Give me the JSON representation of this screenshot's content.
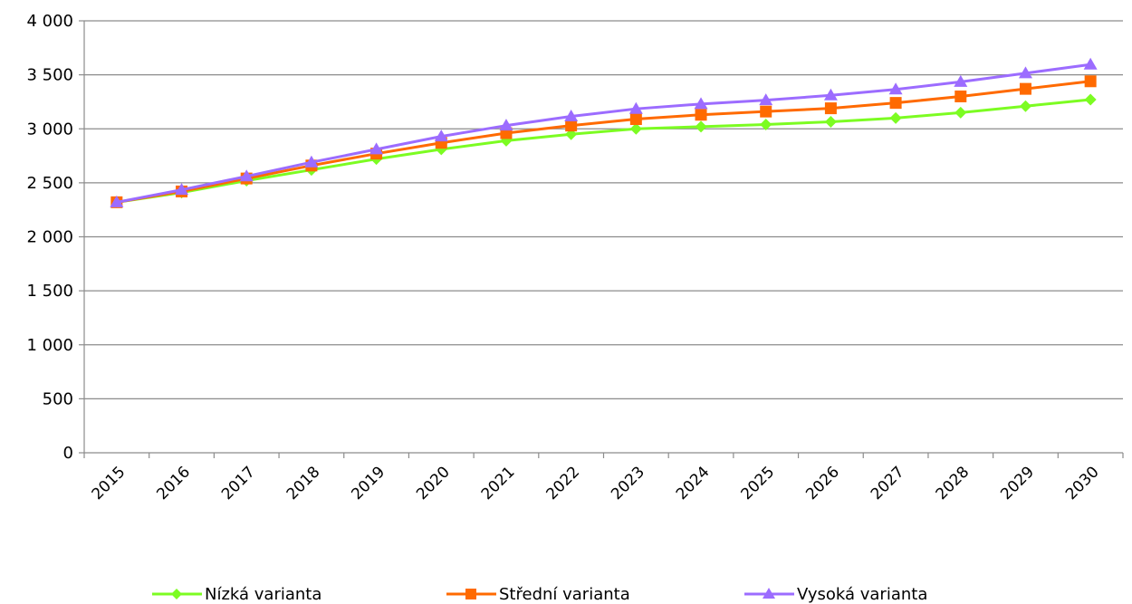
{
  "chart_data": {
    "type": "line",
    "title": "",
    "xlabel": "",
    "ylabel": "",
    "x": [
      "2015",
      "2016",
      "2017",
      "2018",
      "2019",
      "2020",
      "2021",
      "2022",
      "2023",
      "2024",
      "2025",
      "2026",
      "2027",
      "2028",
      "2029",
      "2030"
    ],
    "ylim": [
      0,
      4000
    ],
    "yticks": [
      0,
      500,
      1000,
      1500,
      2000,
      2500,
      3000,
      3500,
      4000
    ],
    "ytick_labels": [
      "0",
      "500",
      "1 000",
      "1 500",
      "2 000",
      "2 500",
      "3 000",
      "3 500",
      "4 000"
    ],
    "grid": true,
    "legend_position": "bottom",
    "series": [
      {
        "name": "Nízká varianta",
        "color": "#7cfc22",
        "marker": "diamond",
        "values": [
          2320,
          2410,
          2520,
          2620,
          2720,
          2810,
          2890,
          2950,
          3000,
          3020,
          3040,
          3065,
          3100,
          3150,
          3210,
          3270
        ]
      },
      {
        "name": "Střední varianta",
        "color": "#ff6a00",
        "marker": "square",
        "values": [
          2320,
          2420,
          2540,
          2660,
          2770,
          2870,
          2960,
          3030,
          3090,
          3130,
          3160,
          3190,
          3240,
          3300,
          3370,
          3440
        ]
      },
      {
        "name": "Vysoká varianta",
        "color": "#9c6cff",
        "marker": "triangle",
        "values": [
          2320,
          2435,
          2560,
          2690,
          2810,
          2930,
          3030,
          3115,
          3185,
          3230,
          3265,
          3310,
          3365,
          3435,
          3515,
          3595
        ]
      }
    ]
  }
}
